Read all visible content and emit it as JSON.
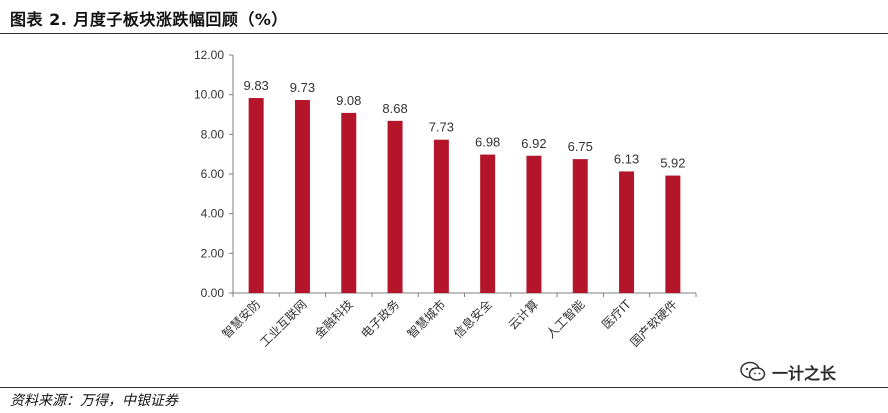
{
  "title": "图表 2. 月度子板块涨跌幅回顾（%）",
  "source": "资料来源：万得，中银证券",
  "watermark": "一计之长",
  "colors": {
    "bar": "#b5152b",
    "axis": "#7f7f7f"
  },
  "chart_data": {
    "type": "bar",
    "title": "",
    "xlabel": "",
    "ylabel": "",
    "ylim": [
      0,
      12
    ],
    "yticks": [
      "0.00",
      "2.00",
      "4.00",
      "6.00",
      "8.00",
      "10.00",
      "12.00"
    ],
    "categories": [
      "智慧安防",
      "工业互联网",
      "金融科技",
      "电子政务",
      "智慧城市",
      "信息安全",
      "云计算",
      "人工智能",
      "医疗IT",
      "国产软硬件"
    ],
    "values": [
      9.83,
      9.73,
      9.08,
      8.68,
      7.73,
      6.98,
      6.92,
      6.75,
      6.13,
      5.92
    ],
    "data_labels": [
      "9.83",
      "9.73",
      "9.08",
      "8.68",
      "7.73",
      "6.98",
      "6.92",
      "6.75",
      "6.13",
      "5.92"
    ]
  }
}
